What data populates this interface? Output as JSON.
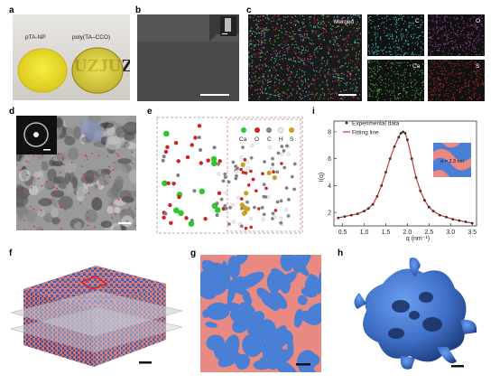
{
  "panels": {
    "a": {
      "label": "a",
      "left_caption": "pTA-NP",
      "right_caption": "poly(TA–CCO)",
      "background_text": "UZJUZ"
    },
    "b": {
      "label": "b"
    },
    "c": {
      "label": "c",
      "merged": "Merged",
      "elements": [
        "C",
        "O",
        "Ca",
        "S"
      ],
      "colors": {
        "C": "#40c8c8",
        "O": "#b048b0",
        "Ca": "#40c040",
        "S": "#d03030"
      }
    },
    "d": {
      "label": "d"
    },
    "e": {
      "label": "e",
      "legend": [
        "Ca",
        "O",
        "C",
        "H",
        "S"
      ],
      "legend_colors": [
        "#2ec82e",
        "#d02020",
        "#808080",
        "#f0f0f0",
        "#c8a020"
      ]
    },
    "f": {
      "label": "f"
    },
    "g": {
      "label": "g"
    },
    "h": {
      "label": "h"
    },
    "i": {
      "label": "i",
      "ylabel": "I(q)",
      "xlabel": "q (nm⁻¹)",
      "legend_exp": "Experimental data",
      "legend_fit": "Fitting line",
      "inset_text": "d = 3.3 nm",
      "accent": "#d03030"
    }
  },
  "chart_data": {
    "type": "line",
    "title": "",
    "xlabel": "q (nm⁻¹)",
    "ylabel": "I(q)",
    "xlim": [
      0.3,
      3.6
    ],
    "ylim": [
      1,
      8.8
    ],
    "xticks": [
      0.5,
      1.0,
      1.5,
      2.0,
      2.5,
      3.0,
      3.5
    ],
    "yticks": [
      2,
      4,
      6,
      8
    ],
    "series": [
      {
        "name": "Experimental data",
        "style": "points",
        "x": [
          0.4,
          0.55,
          0.7,
          0.85,
          1.0,
          1.1,
          1.2,
          1.3,
          1.4,
          1.5,
          1.6,
          1.7,
          1.8,
          1.85,
          1.9,
          1.95,
          2.0,
          2.1,
          2.2,
          2.3,
          2.4,
          2.5,
          2.6,
          2.75,
          2.9,
          3.05,
          3.2,
          3.35,
          3.5
        ],
        "y": [
          1.6,
          1.7,
          1.8,
          1.9,
          2.1,
          2.3,
          2.6,
          3.2,
          4.0,
          5.0,
          6.0,
          6.9,
          7.6,
          7.9,
          8.0,
          7.9,
          7.4,
          6.0,
          4.6,
          3.6,
          2.9,
          2.4,
          2.1,
          1.8,
          1.65,
          1.5,
          1.4,
          1.3,
          1.2
        ]
      },
      {
        "name": "Fitting line",
        "style": "line",
        "x": [
          0.4,
          0.55,
          0.7,
          0.85,
          1.0,
          1.1,
          1.2,
          1.3,
          1.4,
          1.5,
          1.6,
          1.7,
          1.8,
          1.85,
          1.9,
          1.95,
          2.0,
          2.1,
          2.2,
          2.3,
          2.4,
          2.5,
          2.6,
          2.75,
          2.9,
          3.05,
          3.2,
          3.35,
          3.5
        ],
        "y": [
          1.6,
          1.7,
          1.8,
          1.9,
          2.1,
          2.3,
          2.6,
          3.2,
          4.0,
          5.0,
          6.0,
          6.9,
          7.6,
          7.9,
          8.0,
          7.9,
          7.4,
          6.0,
          4.6,
          3.6,
          2.9,
          2.4,
          2.1,
          1.8,
          1.65,
          1.5,
          1.4,
          1.3,
          1.2
        ]
      }
    ]
  }
}
